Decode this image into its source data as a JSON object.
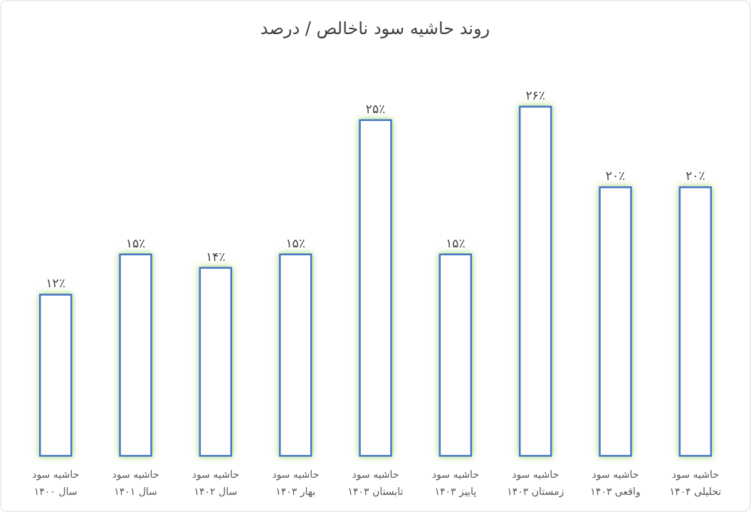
{
  "chart_data": {
    "type": "bar",
    "title": "روند حاشیه سود ناخالص / درصد",
    "categories": [
      "حاشیه سود\nسال ۱۴۰۰",
      "حاشیه سود\nسال ۱۴۰۱",
      "حاشیه سود\nسال ۱۴۰۲",
      "حاشیه سود\nبهار ۱۴۰۳",
      "حاشیه سود\nتابستان ۱۴۰۳",
      "حاشیه سود\nپاییز ۱۴۰۳",
      "حاشیه سود\nزمستان ۱۴۰۳",
      "حاشیه سود\nواقعی ۱۴۰۳",
      "حاشیه سود\nتحلیلی ۱۴۰۴"
    ],
    "values": [
      12,
      15,
      14,
      15,
      25,
      15,
      26,
      20,
      20
    ],
    "value_labels": [
      "۱۲٪",
      "۱۵٪",
      "۱۴٪",
      "۱۵٪",
      "۲۵٪",
      "۱۵٪",
      "۲۶٪",
      "۲۰٪",
      "۲۰٪"
    ],
    "color": "#4472c4"
  }
}
